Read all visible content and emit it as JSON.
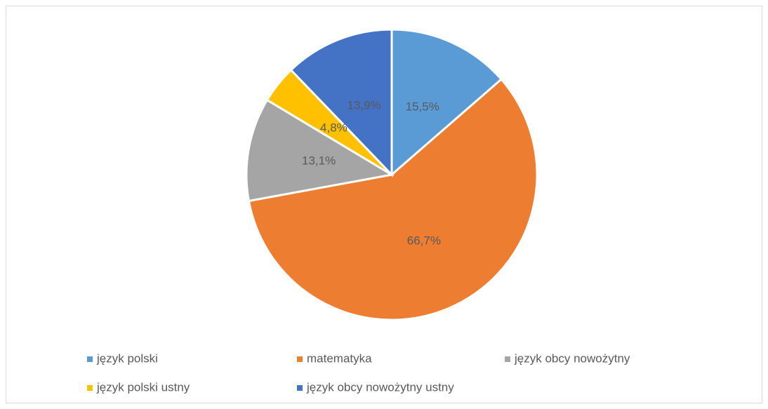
{
  "chart_data": {
    "type": "pie",
    "categories": [
      "język polski",
      "matematyka",
      "język obcy nowożytny",
      "język polski ustny",
      "język obcy nowożytny ustny"
    ],
    "values": [
      15.5,
      66.7,
      13.1,
      4.8,
      13.9
    ],
    "value_labels": [
      "15,5%",
      "66,7%",
      "13,1%",
      "4,8%",
      "13,9%"
    ],
    "colors": [
      "#5b9bd5",
      "#ed7d31",
      "#a5a5a5",
      "#ffc000",
      "#4472c4"
    ],
    "legend": "bottom"
  }
}
